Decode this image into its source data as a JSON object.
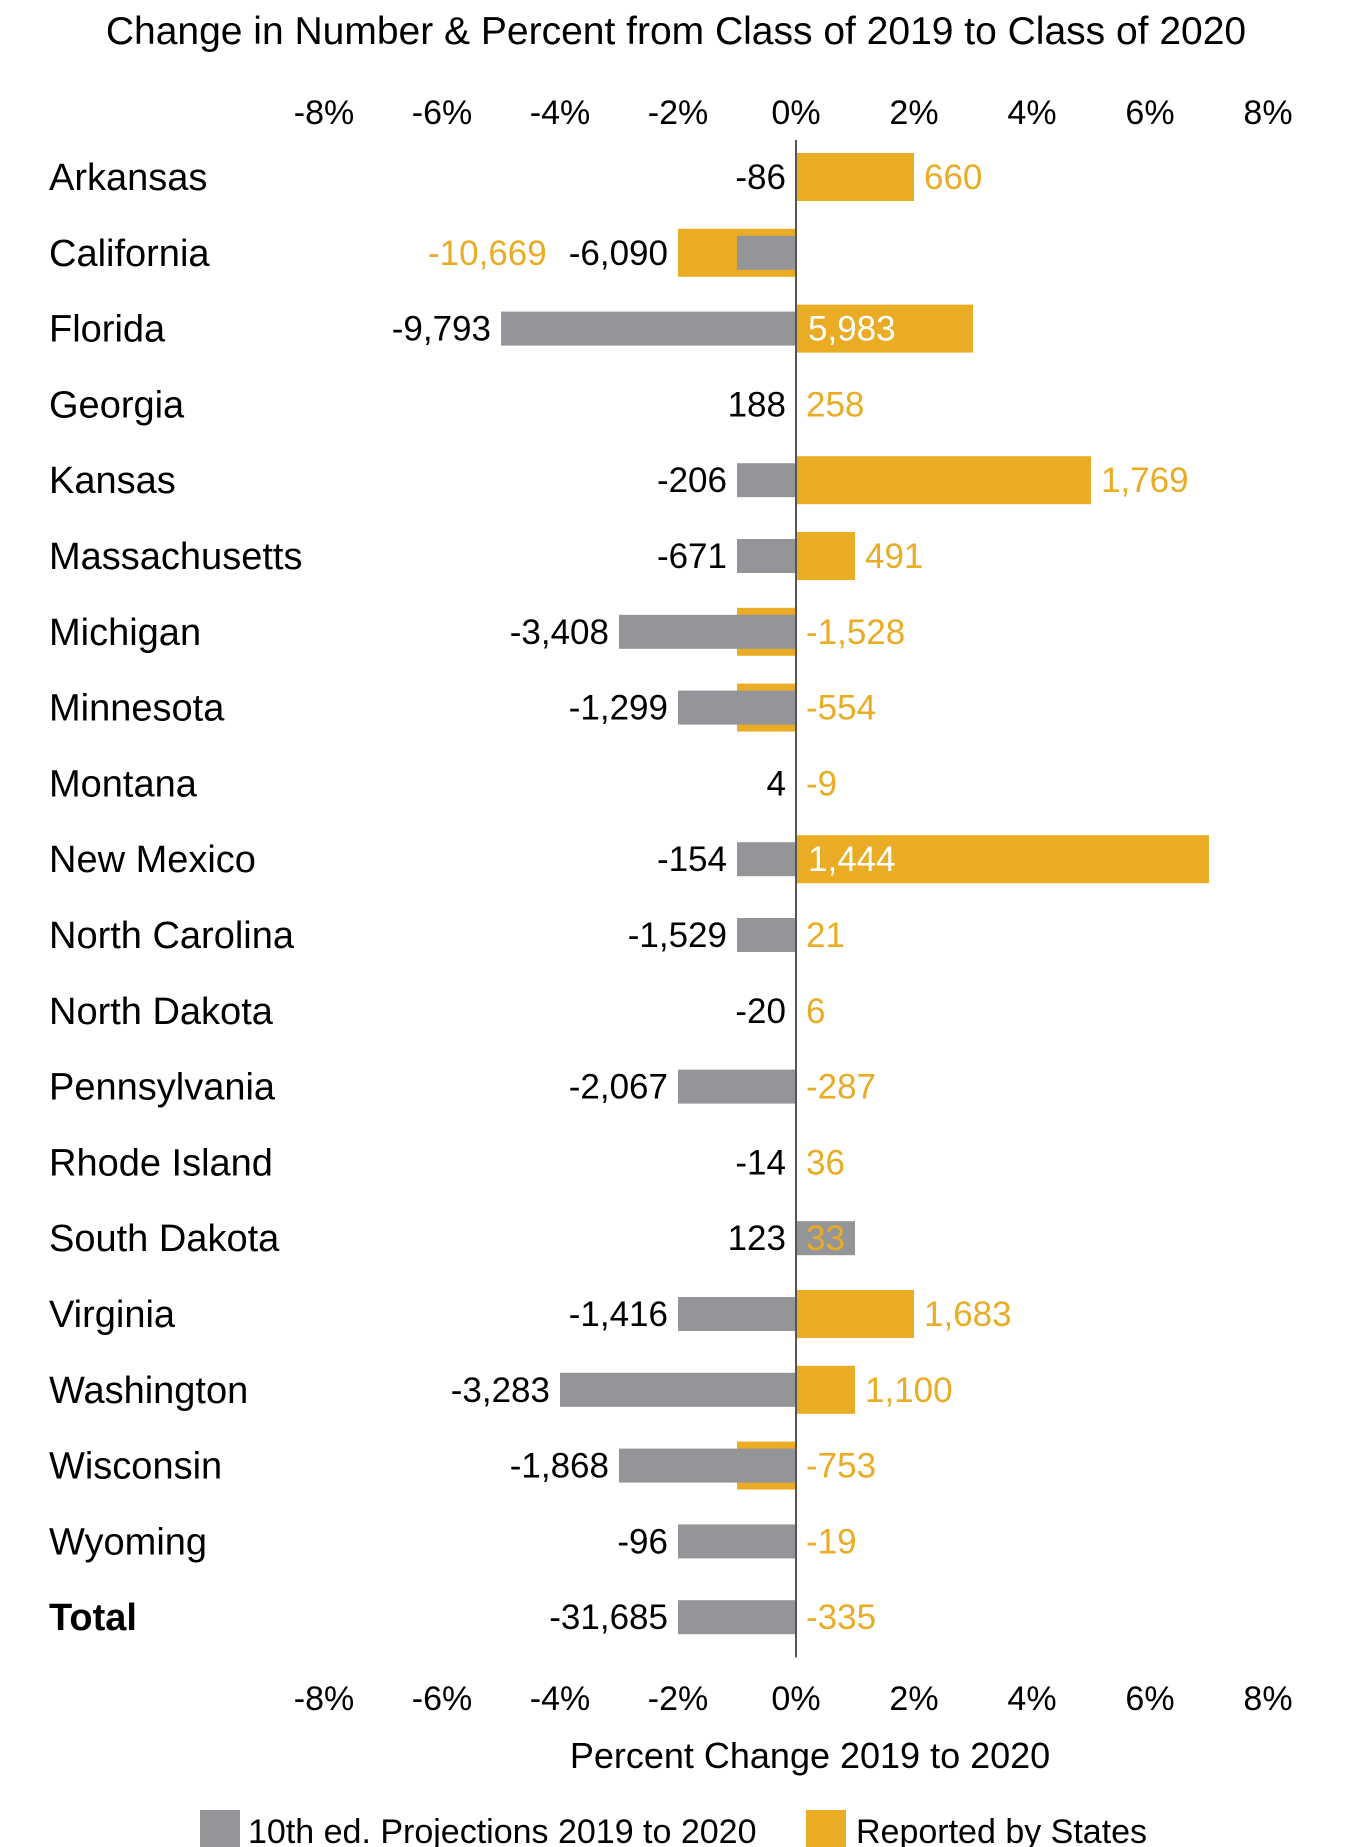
{
  "chart_data": {
    "type": "bar",
    "orientation": "horizontal",
    "title": "Change in Number & Percent from Class of 2019 to Class of 2020",
    "xlabel": "Percent Change 2019 to 2020",
    "xlim": [
      -8,
      8
    ],
    "x_ticks": [
      "-8%",
      "-6%",
      "-4%",
      "-2%",
      "0%",
      "2%",
      "4%",
      "6%",
      "8%"
    ],
    "legend_placement": "bottom",
    "colors": {
      "projections": "#939598",
      "reported": "#E9AC24"
    },
    "categories": [
      "Arkansas",
      "California",
      "Florida",
      "Georgia",
      "Kansas",
      "Massachusetts",
      "Michigan",
      "Minnesota",
      "Montana",
      "New Mexico",
      "North Carolina",
      "North Dakota",
      "Pennsylvania",
      "Rhode Island",
      "South Dakota",
      "Virginia",
      "Washington",
      "Wisconsin",
      "Wyoming",
      "Total"
    ],
    "series": [
      {
        "name": "10th ed. Projections 2019 to 2020",
        "values_percent": [
          0,
          -1,
          -5,
          0,
          -1,
          -1,
          -3,
          -2,
          0,
          -1,
          -1,
          0,
          -2,
          0,
          1,
          -2,
          -4,
          -3,
          -2,
          -2
        ],
        "labels": [
          "-86",
          "-6,090",
          "-9,793",
          "188",
          "-206",
          "-671",
          "-3,408",
          "-1,299",
          "4",
          "-154",
          "-1,529",
          "-20",
          "-2,067",
          "-14",
          "123",
          "-1,416",
          "-3,283",
          "-1,868",
          "-96",
          "-31,685"
        ]
      },
      {
        "name": "Reported by States",
        "values_percent": [
          2,
          -2,
          3,
          0,
          5,
          1,
          -1,
          -1,
          0,
          7,
          0,
          0,
          0,
          0,
          0,
          2,
          1,
          -1,
          0,
          0
        ],
        "labels": [
          "660",
          "-10,669",
          "5,983",
          "258",
          "1,769",
          "491",
          "-1,528",
          "-554",
          "-9",
          "1,444",
          "21",
          "6",
          "-287",
          "36",
          "33",
          "1,683",
          "1,100",
          "-753",
          "-19",
          "-335"
        ]
      }
    ]
  }
}
